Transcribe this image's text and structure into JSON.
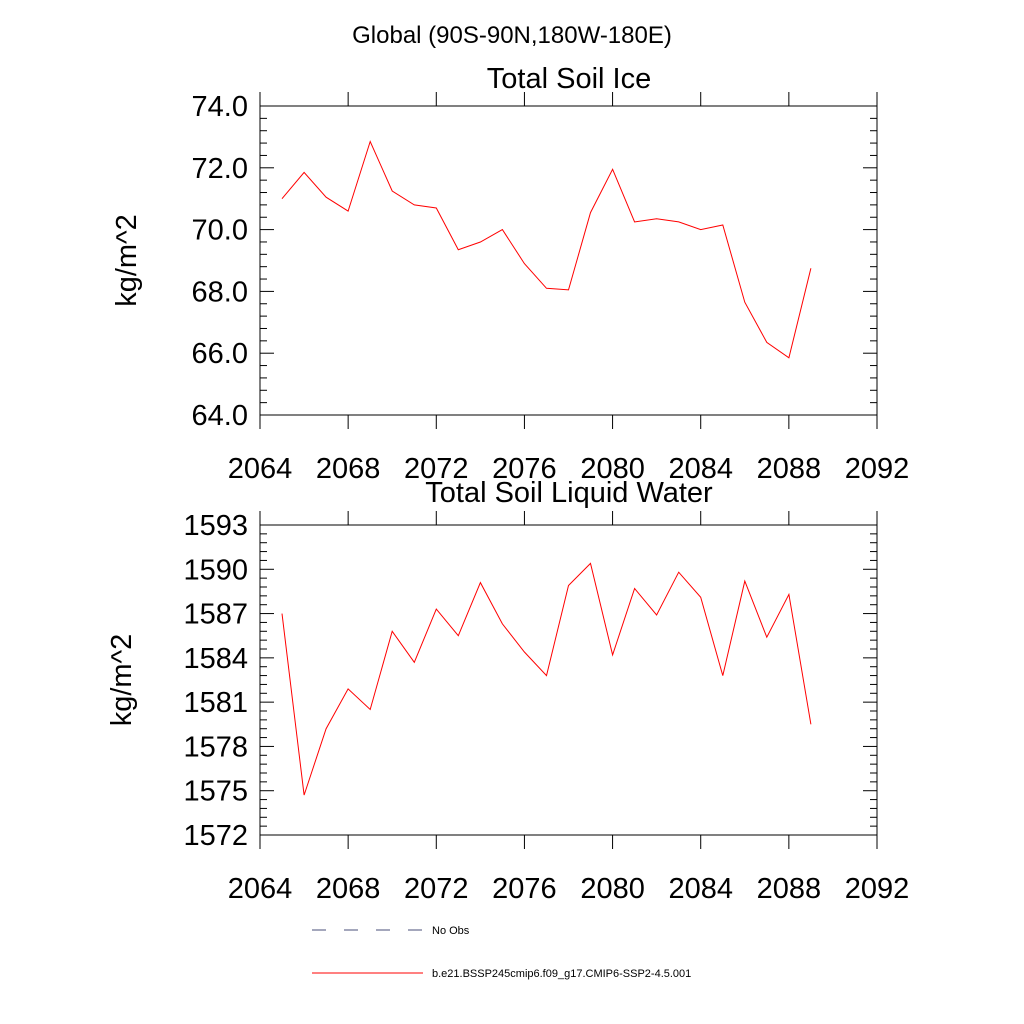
{
  "page_title": "Global (90S-90N,180W-180E)",
  "chart_data": [
    {
      "type": "line",
      "title": "Total Soil Ice",
      "xlabel": "",
      "ylabel": "kg/m^2",
      "xlim": [
        2064,
        2092
      ],
      "ylim": [
        64.0,
        74.0
      ],
      "x_ticks": [
        "2064",
        "2068",
        "2072",
        "2076",
        "2080",
        "2084",
        "2088",
        "2092"
      ],
      "y_ticks": [
        "64.0",
        "66.0",
        "68.0",
        "70.0",
        "72.0",
        "74.0"
      ],
      "series": [
        {
          "color": "#ff0000",
          "x": [
            2065,
            2066,
            2067,
            2068,
            2069,
            2070,
            2071,
            2072,
            2073,
            2074,
            2075,
            2076,
            2077,
            2078,
            2079,
            2080,
            2081,
            2082,
            2083,
            2084,
            2085,
            2086,
            2087,
            2088,
            2089
          ],
          "values": [
            71.0,
            71.85,
            71.05,
            70.6,
            72.85,
            71.25,
            70.8,
            70.7,
            69.35,
            69.6,
            70.0,
            68.9,
            68.1,
            68.05,
            70.55,
            71.95,
            70.25,
            70.35,
            70.25,
            70.0,
            70.15,
            67.65,
            66.35,
            65.85,
            68.75
          ]
        }
      ],
      "grid": false
    },
    {
      "type": "line",
      "title": "Total Soil Liquid Water",
      "xlabel": "",
      "ylabel": "kg/m^2",
      "xlim": [
        2064,
        2092
      ],
      "ylim": [
        1572,
        1593
      ],
      "x_ticks": [
        "2064",
        "2068",
        "2072",
        "2076",
        "2080",
        "2084",
        "2088",
        "2092"
      ],
      "y_ticks": [
        "1572",
        "1575",
        "1578",
        "1581",
        "1584",
        "1587",
        "1590",
        "1593"
      ],
      "series": [
        {
          "color": "#ff0000",
          "x": [
            2065,
            2066,
            2067,
            2068,
            2069,
            2070,
            2071,
            2072,
            2073,
            2074,
            2075,
            2076,
            2077,
            2078,
            2079,
            2080,
            2081,
            2082,
            2083,
            2084,
            2085,
            2086,
            2087,
            2088,
            2089
          ],
          "values": [
            1587.0,
            1574.7,
            1579.2,
            1581.9,
            1580.5,
            1585.8,
            1583.7,
            1587.3,
            1585.5,
            1589.1,
            1586.3,
            1584.4,
            1582.8,
            1588.9,
            1590.4,
            1584.2,
            1588.7,
            1586.9,
            1589.8,
            1588.1,
            1582.8,
            1589.2,
            1585.4,
            1588.3,
            1579.5
          ]
        }
      ],
      "grid": false
    }
  ],
  "legend": {
    "placement": "bottom",
    "items": [
      {
        "label": "No Obs",
        "color": "#4a4f7a",
        "style": "dashed"
      },
      {
        "label": "b.e21.BSSP245cmip6.f09_g17.CMIP6-SSP2-4.5.001",
        "color": "#ff0000",
        "style": "solid"
      }
    ]
  }
}
